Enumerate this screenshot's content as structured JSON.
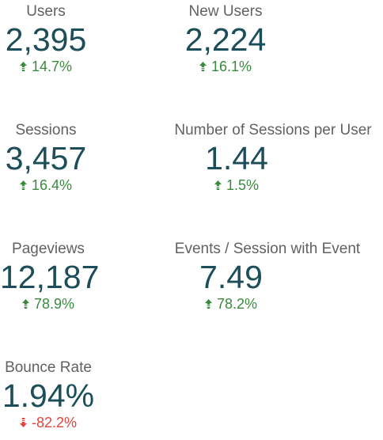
{
  "metrics": [
    {
      "label": "Users",
      "value": "2,395",
      "delta": "14.7%",
      "direction": "up"
    },
    {
      "label": "New Users",
      "value": "2,224",
      "delta": "16.1%",
      "direction": "up"
    },
    {
      "label": "Sessions",
      "value": "3,457",
      "delta": "16.4%",
      "direction": "up"
    },
    {
      "label": "Number of Sessions per User",
      "value": "1.44",
      "delta": "1.5%",
      "direction": "up"
    },
    {
      "label": "Pageviews",
      "value": "12,187",
      "delta": "78.9%",
      "direction": "up"
    },
    {
      "label": "Events / Session with Event",
      "value": "7.49",
      "delta": "78.2%",
      "direction": "up"
    },
    {
      "label": "Bounce Rate",
      "value": "1.94%",
      "delta": "-82.2%",
      "direction": "down"
    }
  ],
  "colors": {
    "label": "#616161",
    "value": "#1c4e5a",
    "positive": "#3a8a3e",
    "negative": "#e0443b"
  },
  "icons": {
    "up": "arrow-up-icon",
    "down": "arrow-down-icon"
  }
}
